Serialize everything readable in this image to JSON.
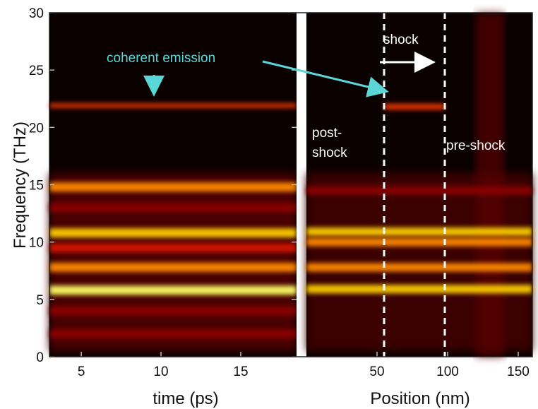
{
  "chart_data": [
    {
      "type": "heatmap",
      "title": "",
      "xlabel": "time (ps)",
      "ylabel": "Frequency (THz)",
      "xlim": [
        3,
        18.5
      ],
      "ylim": [
        0,
        30
      ],
      "xticks": [
        5,
        10,
        15
      ],
      "yticks": [
        0,
        5,
        10,
        15,
        20,
        25,
        30
      ],
      "grid": false,
      "colormap": [
        "#000000",
        "#5a0000",
        "#c81000",
        "#ff5a00",
        "#ffb000",
        "#ffff80"
      ],
      "bands": [
        {
          "freq": 21.9,
          "intensity": 0.55
        },
        {
          "freq": 14.8,
          "intensity": 0.7
        },
        {
          "freq": 13.0,
          "intensity": 0.4
        },
        {
          "freq": 10.8,
          "intensity": 0.9
        },
        {
          "freq": 9.5,
          "intensity": 0.45
        },
        {
          "freq": 7.8,
          "intensity": 0.8
        },
        {
          "freq": 5.8,
          "intensity": 1.0
        },
        {
          "freq": 4.0,
          "intensity": 0.35
        },
        {
          "freq": 2.0,
          "intensity": 0.3
        }
      ],
      "annotations": [
        {
          "text": "coherent emission",
          "x": 8.4,
          "y": 23.5,
          "color": "#5ad6d6"
        }
      ]
    },
    {
      "type": "heatmap",
      "title": "",
      "xlabel": "Position (nm)",
      "ylabel": "",
      "xlim": [
        0,
        160
      ],
      "ylim": [
        0,
        30
      ],
      "xticks": [
        50,
        100,
        150
      ],
      "grid": false,
      "shock_front_positions": [
        55,
        98
      ],
      "bands": [
        {
          "freq": 21.8,
          "intensity": 0.6,
          "xrange": [
            55,
            98
          ]
        },
        {
          "freq": 10.9,
          "intensity": 0.85
        },
        {
          "freq": 10.0,
          "intensity": 0.8
        },
        {
          "freq": 7.8,
          "intensity": 0.7
        },
        {
          "freq": 5.9,
          "intensity": 0.85
        },
        {
          "freq": 14.5,
          "intensity": 0.35
        }
      ],
      "region_labels": [
        {
          "text": "post-\nshock",
          "x": 20,
          "y": 19
        },
        {
          "text": "shock",
          "x": 76,
          "y": 27.5
        },
        {
          "text": "pre-shock",
          "x": 134,
          "y": 18.5
        }
      ],
      "arrow_direction": "right"
    }
  ],
  "panels": {
    "left": {
      "ticks_x": [
        "5",
        "10",
        "15"
      ],
      "ticks_y": [
        "0",
        "5",
        "10",
        "15",
        "20",
        "25",
        "30"
      ],
      "xlabel": "time (ps)",
      "ylabel": "Frequency (THz)"
    },
    "right": {
      "ticks_x": [
        "50",
        "100",
        "150"
      ],
      "xlabel": "Position (nm)"
    }
  },
  "annotations": {
    "coherent_emission": "coherent emission",
    "shock": "shock",
    "post_shock_line1": "post-",
    "post_shock_line2": "shock",
    "pre_shock": "pre-shock"
  },
  "colors": {
    "annotation_cyan": "#5ad6d6",
    "annotation_white": "#ffffff",
    "divider": "#ffffff",
    "axis_text": "#111111"
  }
}
